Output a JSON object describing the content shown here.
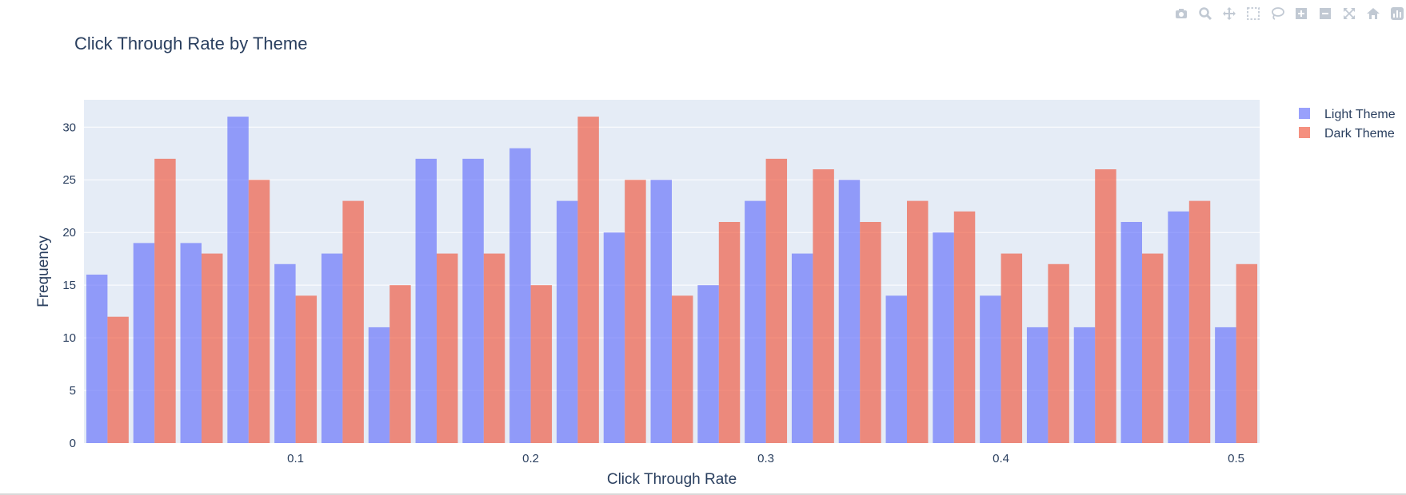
{
  "modebar": [
    "camera-icon",
    "zoom-icon",
    "pan-icon",
    "box-select-icon",
    "lasso-icon",
    "zoom-in-icon",
    "zoom-out-icon",
    "autoscale-icon",
    "home-icon",
    "plotly-logo-icon"
  ],
  "chart_data": {
    "type": "bar",
    "title": "Click Through Rate by Theme",
    "xlabel": "Click Through Rate",
    "ylabel": "Frequency",
    "xlim": [
      0.01,
      0.51
    ],
    "ylim": [
      0,
      32.6
    ],
    "bin_start": 0.01,
    "bin_width": 0.02,
    "x_ticks": [
      0.1,
      0.2,
      0.3,
      0.4,
      0.5
    ],
    "x_tick_labels": [
      "0.1",
      "0.2",
      "0.3",
      "0.4",
      "0.5"
    ],
    "y_ticks": [
      0,
      5,
      10,
      15,
      20,
      25,
      30
    ],
    "y_tick_labels": [
      "0",
      "5",
      "10",
      "15",
      "20",
      "25",
      "30"
    ],
    "grid": true,
    "legend_position": "top-right",
    "series": [
      {
        "name": "Light Theme",
        "color": "#636efa",
        "values": [
          16,
          19,
          19,
          31,
          17,
          18,
          11,
          27,
          27,
          28,
          23,
          20,
          25,
          15,
          23,
          18,
          25,
          14,
          20,
          14,
          11,
          11,
          21,
          22,
          11
        ]
      },
      {
        "name": "Dark Theme",
        "color": "#ef553b",
        "values": [
          12,
          27,
          18,
          25,
          14,
          23,
          15,
          18,
          18,
          15,
          31,
          25,
          14,
          21,
          27,
          26,
          21,
          23,
          22,
          18,
          17,
          26,
          18,
          23,
          17
        ]
      }
    ]
  }
}
